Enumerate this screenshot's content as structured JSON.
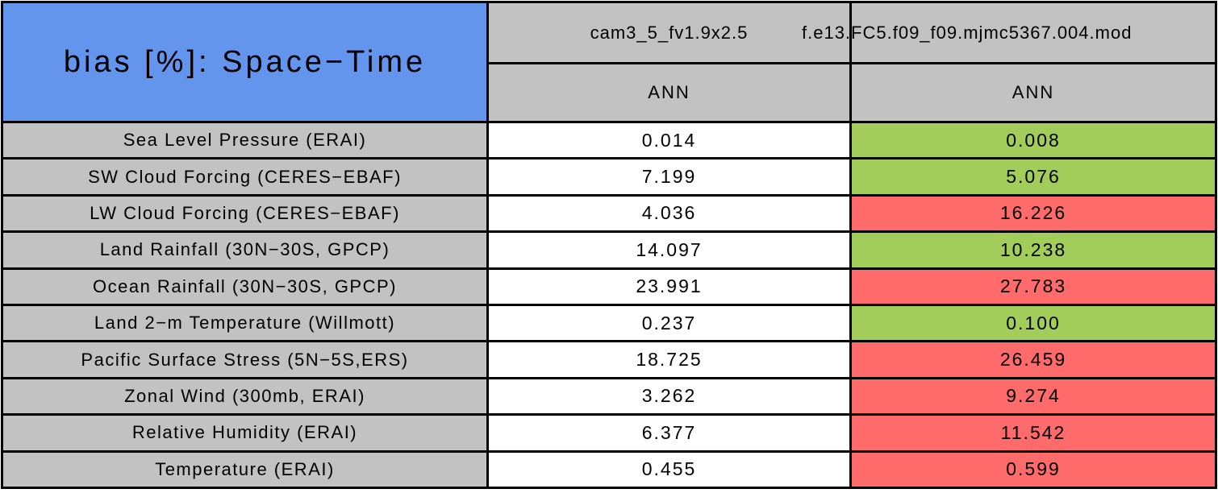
{
  "title": "bias [%]: Space−Time",
  "header": {
    "columns": [
      {
        "model": "cam3_5_fv1.9x2.5",
        "season": "ANN"
      },
      {
        "model": "f.e13.FC5.f09_f09.mjmc5367.004.mod",
        "season": "ANN"
      }
    ]
  },
  "rows": [
    {
      "label": "Sea Level Pressure (ERAI)",
      "values": [
        "0.014",
        "0.008"
      ],
      "status": [
        "plain",
        "better"
      ]
    },
    {
      "label": "SW Cloud Forcing (CERES−EBAF)",
      "values": [
        "7.199",
        "5.076"
      ],
      "status": [
        "plain",
        "better"
      ]
    },
    {
      "label": "LW Cloud Forcing (CERES−EBAF)",
      "values": [
        "4.036",
        "16.226"
      ],
      "status": [
        "plain",
        "worse"
      ]
    },
    {
      "label": "Land Rainfall (30N−30S, GPCP)",
      "values": [
        "14.097",
        "10.238"
      ],
      "status": [
        "plain",
        "better"
      ]
    },
    {
      "label": "Ocean Rainfall (30N−30S, GPCP)",
      "values": [
        "23.991",
        "27.783"
      ],
      "status": [
        "plain",
        "worse"
      ]
    },
    {
      "label": "Land 2−m Temperature (Willmott)",
      "values": [
        "0.237",
        "0.100"
      ],
      "status": [
        "plain",
        "better"
      ]
    },
    {
      "label": "Pacific Surface Stress (5N−5S,ERS)",
      "values": [
        "18.725",
        "26.459"
      ],
      "status": [
        "plain",
        "worse"
      ]
    },
    {
      "label": "Zonal Wind (300mb, ERAI)",
      "values": [
        "3.262",
        "9.274"
      ],
      "status": [
        "plain",
        "worse"
      ]
    },
    {
      "label": "Relative Humidity (ERAI)",
      "values": [
        "6.377",
        "11.542"
      ],
      "status": [
        "plain",
        "worse"
      ]
    },
    {
      "label": "Temperature (ERAI)",
      "values": [
        "0.455",
        "0.599"
      ],
      "status": [
        "plain",
        "worse"
      ]
    }
  ],
  "colors": {
    "title_bg": "#6495ED",
    "header_bg": "#C2C2C2",
    "label_bg": "#C2C2C2",
    "border": "#000000",
    "plain": "#FFFFFF",
    "better": "#A2CD5A",
    "worse": "#FF6A6A"
  },
  "chart_data": {
    "type": "table",
    "title": "bias [%]: Space−Time",
    "columns": [
      "cam3_5_fv1.9x2.5 ANN",
      "f.e13.FC5.f09_f09.mjmc5367.004.mod ANN"
    ],
    "row_labels": [
      "Sea Level Pressure (ERAI)",
      "SW Cloud Forcing (CERES−EBAF)",
      "LW Cloud Forcing (CERES−EBAF)",
      "Land Rainfall (30N−30S, GPCP)",
      "Ocean Rainfall (30N−30S, GPCP)",
      "Land 2−m Temperature (Willmott)",
      "Pacific Surface Stress (5N−5S,ERS)",
      "Zonal Wind (300mb, ERAI)",
      "Relative Humidity (ERAI)",
      "Temperature (ERAI)"
    ],
    "values": [
      [
        0.014,
        0.008
      ],
      [
        7.199,
        5.076
      ],
      [
        4.036,
        16.226
      ],
      [
        14.097,
        10.238
      ],
      [
        23.991,
        27.783
      ],
      [
        0.237,
        0.1
      ],
      [
        18.725,
        26.459
      ],
      [
        3.262,
        9.274
      ],
      [
        6.377,
        11.542
      ],
      [
        0.455,
        0.599
      ]
    ],
    "cell_highlight": [
      [
        "white",
        "green"
      ],
      [
        "white",
        "green"
      ],
      [
        "white",
        "red"
      ],
      [
        "white",
        "green"
      ],
      [
        "white",
        "red"
      ],
      [
        "white",
        "green"
      ],
      [
        "white",
        "red"
      ],
      [
        "white",
        "red"
      ],
      [
        "white",
        "red"
      ],
      [
        "white",
        "red"
      ]
    ],
    "legend_meaning": "green = second model closer to obs, red = second model farther from obs"
  }
}
